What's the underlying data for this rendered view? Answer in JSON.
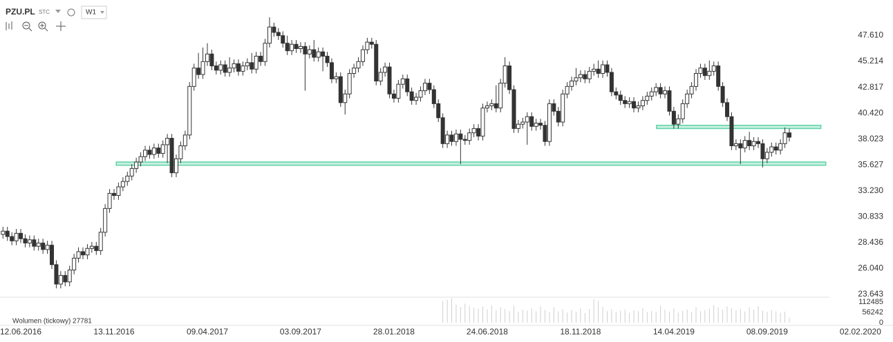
{
  "chart_data": {
    "type": "candlestick",
    "title": "PZU.PL",
    "source": "STC",
    "interval": "W1",
    "open": [
      29.2,
      29.5,
      29.0,
      28.6,
      29.3,
      28.8,
      28.4,
      28.7,
      28.1,
      28.4,
      27.8,
      28.2,
      26.4,
      24.6,
      25.4,
      24.8,
      25.9,
      27.0,
      27.6,
      27.3,
      27.9,
      28.1,
      27.7,
      29.4,
      31.6,
      33.0,
      32.8,
      33.6,
      34.1,
      34.6,
      35.3,
      35.9,
      36.4,
      37.0,
      36.6,
      37.2,
      36.7,
      37.5,
      38.1,
      34.9,
      36.2,
      37.4,
      38.4,
      42.9,
      44.6,
      44.0,
      45.2,
      45.9,
      44.8,
      44.4,
      44.9,
      44.2,
      44.6,
      45.0,
      44.3,
      44.8,
      45.1,
      44.5,
      45.7,
      45.2,
      46.9,
      48.4,
      47.9,
      47.6,
      46.9,
      46.2,
      46.8,
      46.4,
      46.6,
      45.9,
      46.3,
      45.6,
      46.1,
      45.7,
      45.1,
      43.6,
      43.8,
      41.4,
      42.2,
      44.1,
      44.6,
      45.2,
      46.3,
      47.0,
      46.8,
      43.4,
      44.2,
      44.7,
      42.2,
      41.8,
      43.1,
      43.6,
      42.4,
      41.6,
      41.9,
      42.5,
      43.2,
      42.6,
      41.3,
      40.0,
      37.6,
      38.4,
      37.8,
      38.5,
      38.0,
      37.9,
      38.6,
      39.0,
      38.3,
      40.9,
      41.1,
      41.3,
      40.9,
      43.2,
      44.8,
      42.6,
      39.0,
      39.4,
      39.6,
      40.1,
      39.2,
      39.5,
      39.3,
      37.8,
      41.3,
      40.6,
      39.6,
      42.2,
      42.9,
      43.4,
      43.7,
      44.0,
      43.6,
      44.3,
      44.5,
      44.1,
      44.9,
      44.2,
      42.4,
      42.1,
      41.6,
      41.3,
      41.5,
      40.9,
      41.1,
      41.6,
      42.0,
      42.4,
      42.8,
      42.2,
      42.5,
      40.6,
      39.4,
      39.9,
      41.3,
      42.2,
      42.9,
      44.1,
      44.6,
      43.9,
      44.3,
      44.8,
      42.9,
      41.4,
      40.1,
      37.4,
      37.6,
      37.2,
      37.9,
      37.4,
      37.8,
      37.6,
      36.2,
      36.8,
      37.3,
      37.0,
      37.6,
      38.6
    ],
    "high": [
      29.9,
      29.9,
      29.4,
      29.7,
      29.7,
      29.2,
      29.1,
      29.1,
      28.8,
      28.8,
      28.6,
      28.6,
      26.8,
      25.8,
      25.8,
      26.3,
      27.4,
      28.0,
      28.0,
      28.3,
      28.5,
      28.5,
      29.8,
      32.0,
      33.4,
      33.4,
      34.0,
      34.5,
      35.0,
      35.7,
      36.3,
      36.8,
      37.4,
      37.4,
      37.6,
      37.6,
      37.9,
      38.5,
      38.5,
      36.6,
      37.8,
      38.8,
      43.3,
      45.0,
      46.0,
      46.5,
      46.9,
      46.3,
      45.2,
      45.3,
      45.3,
      45.6,
      45.4,
      45.4,
      45.2,
      45.5,
      46.0,
      46.1,
      46.1,
      47.3,
      49.3,
      48.8,
      48.3,
      48.0,
      47.6,
      47.2,
      47.2,
      47.0,
      47.0,
      46.7,
      47.2,
      46.5,
      46.5,
      46.1,
      45.5,
      44.2,
      44.2,
      42.6,
      44.5,
      45.0,
      45.6,
      46.7,
      47.4,
      47.4,
      47.2,
      44.6,
      45.1,
      45.1,
      42.6,
      43.5,
      44.0,
      44.0,
      42.8,
      42.3,
      42.9,
      43.6,
      43.6,
      43.0,
      41.7,
      40.4,
      38.8,
      38.8,
      38.9,
      38.9,
      38.4,
      39.0,
      39.4,
      39.4,
      41.3,
      41.5,
      41.7,
      43.0,
      43.6,
      45.6,
      45.2,
      43.0,
      39.8,
      40.0,
      40.5,
      40.5,
      39.9,
      39.9,
      39.7,
      41.7,
      41.7,
      41.0,
      42.6,
      43.3,
      43.8,
      44.6,
      44.4,
      44.4,
      44.7,
      45.0,
      45.3,
      45.3,
      45.3,
      44.6,
      42.8,
      42.5,
      42.0,
      41.9,
      41.9,
      41.5,
      42.0,
      42.4,
      42.8,
      43.2,
      43.2,
      42.9,
      42.9,
      41.0,
      40.3,
      41.7,
      42.6,
      43.3,
      44.5,
      45.0,
      45.0,
      45.3,
      45.2,
      45.2,
      43.3,
      41.8,
      40.5,
      38.0,
      38.0,
      38.3,
      38.7,
      38.2,
      38.2,
      38.0,
      37.2,
      37.7,
      37.7,
      38.0,
      39.1,
      39.0
    ],
    "low": [
      28.8,
      28.6,
      28.2,
      28.2,
      28.4,
      28.0,
      28.0,
      27.7,
      27.7,
      27.4,
      27.4,
      26.0,
      24.2,
      24.2,
      24.4,
      24.4,
      25.5,
      26.6,
      26.9,
      26.9,
      27.5,
      27.3,
      27.3,
      29.0,
      31.2,
      32.4,
      32.4,
      33.2,
      33.7,
      34.2,
      34.9,
      35.5,
      36.0,
      36.2,
      36.2,
      36.3,
      36.3,
      35.8,
      34.5,
      34.5,
      35.8,
      37.0,
      38.0,
      42.5,
      43.6,
      43.6,
      44.8,
      44.4,
      44.0,
      44.0,
      43.8,
      43.8,
      44.2,
      43.9,
      43.9,
      44.4,
      44.1,
      44.1,
      44.8,
      44.8,
      46.5,
      47.5,
      47.2,
      46.5,
      45.8,
      45.8,
      46.0,
      46.0,
      42.5,
      45.5,
      45.2,
      45.2,
      44.3,
      44.7,
      43.2,
      43.2,
      41.0,
      40.3,
      41.8,
      43.7,
      44.2,
      44.8,
      45.9,
      46.4,
      43.0,
      43.0,
      43.8,
      41.8,
      41.4,
      41.4,
      42.7,
      42.0,
      41.2,
      41.2,
      41.5,
      42.1,
      42.2,
      40.9,
      39.6,
      37.2,
      37.2,
      37.4,
      37.4,
      35.7,
      37.5,
      37.5,
      38.2,
      37.9,
      37.9,
      40.5,
      40.7,
      40.5,
      40.5,
      42.8,
      42.2,
      38.6,
      38.6,
      39.0,
      37.5,
      38.8,
      38.8,
      38.9,
      37.4,
      37.4,
      40.2,
      39.2,
      39.2,
      41.8,
      42.5,
      43.0,
      43.3,
      43.2,
      43.2,
      43.9,
      43.7,
      43.7,
      43.8,
      42.0,
      41.7,
      41.2,
      40.9,
      40.9,
      40.5,
      40.5,
      40.7,
      41.2,
      41.6,
      42.0,
      41.8,
      41.8,
      40.2,
      39.0,
      39.0,
      39.5,
      40.9,
      41.8,
      42.5,
      43.7,
      43.5,
      43.5,
      43.9,
      42.5,
      41.0,
      39.7,
      37.0,
      37.0,
      35.7,
      36.8,
      37.0,
      37.0,
      37.2,
      35.4,
      35.8,
      36.4,
      36.6,
      36.6,
      37.2,
      37.8
    ],
    "close": [
      29.5,
      29.0,
      28.6,
      29.3,
      28.8,
      28.4,
      28.7,
      28.1,
      28.4,
      27.8,
      28.2,
      26.4,
      24.6,
      25.4,
      24.8,
      25.9,
      27.0,
      27.6,
      27.3,
      27.9,
      28.1,
      27.7,
      29.4,
      31.6,
      33.0,
      32.8,
      33.6,
      34.1,
      34.6,
      35.3,
      35.9,
      36.4,
      37.0,
      36.6,
      37.2,
      36.7,
      37.5,
      38.1,
      34.9,
      36.2,
      37.4,
      38.4,
      42.9,
      44.6,
      44.0,
      45.2,
      45.9,
      44.8,
      44.4,
      44.9,
      44.2,
      44.6,
      45.0,
      44.3,
      44.8,
      45.1,
      44.5,
      45.7,
      45.2,
      46.9,
      48.4,
      47.9,
      47.6,
      46.9,
      46.2,
      46.8,
      46.4,
      46.6,
      45.9,
      46.3,
      45.6,
      46.1,
      45.7,
      45.1,
      43.6,
      43.8,
      41.4,
      42.2,
      44.1,
      44.6,
      45.2,
      46.3,
      47.0,
      46.8,
      43.4,
      44.2,
      44.7,
      42.2,
      41.8,
      43.1,
      43.6,
      42.4,
      41.6,
      41.9,
      42.5,
      43.2,
      42.6,
      41.3,
      40.0,
      37.6,
      38.4,
      37.8,
      38.5,
      38.0,
      37.9,
      38.6,
      39.0,
      38.3,
      40.9,
      41.1,
      41.3,
      40.9,
      43.2,
      44.8,
      42.6,
      39.0,
      39.4,
      39.6,
      40.1,
      39.2,
      39.5,
      39.3,
      37.8,
      41.3,
      40.6,
      39.6,
      42.2,
      42.9,
      43.4,
      43.7,
      44.0,
      43.6,
      44.3,
      44.5,
      44.1,
      44.9,
      44.2,
      42.4,
      42.1,
      41.6,
      41.3,
      41.5,
      40.9,
      41.1,
      41.6,
      42.0,
      42.4,
      42.8,
      42.2,
      42.5,
      40.6,
      39.4,
      39.9,
      41.3,
      42.2,
      42.9,
      44.1,
      44.6,
      43.9,
      44.3,
      44.8,
      42.9,
      41.4,
      40.1,
      37.4,
      37.6,
      37.2,
      37.9,
      37.4,
      37.8,
      37.6,
      36.2,
      36.8,
      37.3,
      37.0,
      37.6,
      38.6,
      38.2
    ],
    "up_color": "#ffffff",
    "down_color": "#333333",
    "xlim": [
      -0.67,
      198
    ],
    "xticks": [
      {
        "value": 4,
        "label": "12.06.2016"
      },
      {
        "value": 25,
        "label": "13.11.2016"
      },
      {
        "value": 46,
        "label": "09.04.2017"
      },
      {
        "value": 67,
        "label": "03.09.2017"
      },
      {
        "value": 88,
        "label": "28.01.2018"
      },
      {
        "value": 109,
        "label": "24.06.2018"
      },
      {
        "value": 130,
        "label": "18.11.2018"
      },
      {
        "value": 151,
        "label": "14.04.2019"
      },
      {
        "value": 172,
        "label": "08.09.2019"
      },
      {
        "value": 193,
        "label": "02.02.2020"
      }
    ],
    "ylim": [
      23.45,
      50.9
    ],
    "yticks": [
      23.643,
      {
        "value": 26.04,
        "label": "26.040"
      },
      28.436,
      30.833,
      {
        "value": 33.23,
        "label": "33.230"
      },
      35.627,
      38.023,
      {
        "value": 40.42,
        "label": "40.420"
      },
      42.817,
      45.214,
      {
        "value": 47.61,
        "label": "47.610"
      }
    ],
    "zones": [
      {
        "x": [
          25.5,
          185.2
        ],
        "y": [
          35.6,
          35.9
        ],
        "color": "#5fd3a8"
      },
      {
        "x": [
          147.1,
          184.1
        ],
        "y": [
          39.0,
          39.3
        ],
        "color": "#5fd3a8"
      }
    ],
    "volume": {
      "label": "Wolumen (tickowy) 27781",
      "color": "#cfcfcf",
      "ylim": [
        0,
        135000
      ],
      "yticks": [
        0,
        56242,
        112485
      ],
      "values": [
        null,
        null,
        null,
        null,
        null,
        null,
        null,
        null,
        null,
        null,
        null,
        null,
        null,
        null,
        null,
        null,
        null,
        null,
        null,
        null,
        null,
        null,
        null,
        null,
        null,
        null,
        null,
        null,
        null,
        null,
        null,
        null,
        null,
        null,
        null,
        null,
        null,
        null,
        null,
        null,
        null,
        null,
        null,
        null,
        null,
        null,
        null,
        null,
        null,
        null,
        null,
        null,
        null,
        null,
        null,
        null,
        null,
        null,
        null,
        null,
        null,
        null,
        null,
        null,
        null,
        null,
        null,
        null,
        null,
        null,
        null,
        null,
        null,
        null,
        null,
        null,
        null,
        null,
        null,
        null,
        null,
        null,
        null,
        null,
        null,
        null,
        null,
        null,
        null,
        null,
        null,
        null,
        null,
        null,
        null,
        null,
        null,
        null,
        null,
        118000,
        125000,
        132000,
        98000,
        86000,
        104000,
        92000,
        81000,
        76000,
        88000,
        72000,
        95000,
        68000,
        83000,
        74000,
        64000,
        91000,
        59000,
        71000,
        66000,
        79000,
        62000,
        88000,
        70000,
        57000,
        84000,
        61000,
        73000,
        55000,
        69000,
        60000,
        78000,
        52000,
        75000,
        128000,
        120000,
        86000,
        63000,
        74000,
        58000,
        66000,
        71000,
        54000,
        68000,
        62000,
        80000,
        57000,
        64000,
        59000,
        92000,
        70000,
        61000,
        77000,
        55000,
        65000,
        72000,
        58000,
        84000,
        63000,
        69000,
        76000,
        95000,
        82000,
        70000,
        88000,
        79000,
        67000,
        74000,
        61000,
        83000,
        72000,
        90000,
        65000,
        58000,
        69000,
        62000,
        54000,
        60000,
        27781
      ]
    }
  }
}
